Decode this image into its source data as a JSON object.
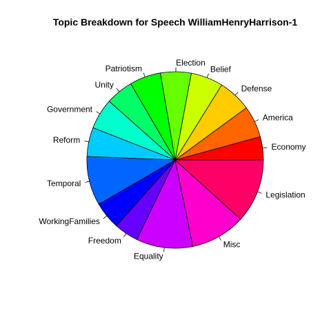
{
  "chart_data": {
    "type": "pie",
    "title": "Topic Breakdown for Speech WilliamHenryHarrison-1",
    "direction": "counterclockwise",
    "start": "3 o'clock",
    "slices": [
      {
        "label": "Economy",
        "value": 4.4,
        "color": "#FF0000"
      },
      {
        "label": "America",
        "value": 6.0,
        "color": "#FF6600"
      },
      {
        "label": "Defense",
        "value": 6.3,
        "color": "#FFCC00"
      },
      {
        "label": "Belief",
        "value": 6.1,
        "color": "#CCFF00"
      },
      {
        "label": "Election",
        "value": 5.8,
        "color": "#66FF00"
      },
      {
        "label": "Patriotism",
        "value": 5.9,
        "color": "#00FF00"
      },
      {
        "label": "Unity",
        "value": 5.2,
        "color": "#00FF66"
      },
      {
        "label": "Government",
        "value": 5.8,
        "color": "#00FFCC"
      },
      {
        "label": "Reform",
        "value": 5.5,
        "color": "#00CCFF"
      },
      {
        "label": "Temporal",
        "value": 9.3,
        "color": "#0066FF"
      },
      {
        "label": "WorkingFamilies",
        "value": 5.2,
        "color": "#0000FF"
      },
      {
        "label": "Freedom",
        "value": 4.6,
        "color": "#6600FF"
      },
      {
        "label": "Equality",
        "value": 10.7,
        "color": "#CC00FF"
      },
      {
        "label": "Misc",
        "value": 10.4,
        "color": "#FF00CC"
      },
      {
        "label": "Legislation",
        "value": 12.1,
        "color": "#FF0066"
      }
    ]
  }
}
